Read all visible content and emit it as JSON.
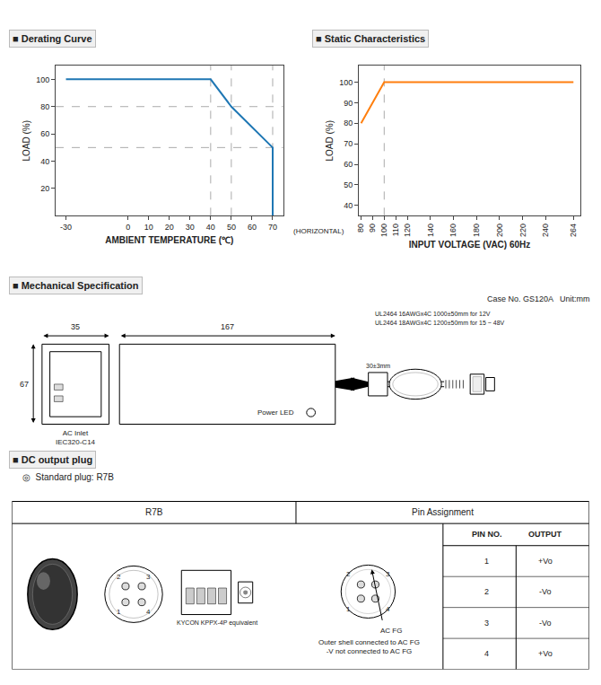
{
  "chart_data": [
    {
      "type": "line",
      "title": "■ Derating Curve",
      "xlabel": "AMBIENT TEMPERATURE (℃)",
      "ylabel": "LOAD (%)",
      "annotations": [
        "(HORIZONTAL)"
      ],
      "x": [
        -30,
        40,
        50,
        70,
        70
      ],
      "values": [
        100,
        100,
        80,
        50,
        0
      ],
      "hlines": [
        80,
        50
      ],
      "vlines": [
        40,
        50,
        70
      ],
      "xlim": [
        -35,
        75
      ],
      "xticks": [
        -30,
        0,
        10,
        20,
        30,
        40,
        50,
        60,
        70
      ],
      "ylim": [
        0,
        110
      ],
      "yticks": [
        20,
        40,
        60,
        80,
        100
      ],
      "grid": false
    },
    {
      "type": "line",
      "title": "■ Static Characteristics",
      "xlabel": "INPUT VOLTAGE (VAC) 60Hz",
      "ylabel": "LOAD (%)",
      "x": [
        80,
        100,
        264
      ],
      "values": [
        80,
        100,
        100
      ],
      "vlines": [
        100
      ],
      "xlim": [
        78,
        270
      ],
      "xticks": [
        80,
        90,
        100,
        110,
        120,
        140,
        160,
        180,
        200,
        220,
        240,
        264
      ],
      "ylim": [
        35,
        108
      ],
      "yticks": [
        40,
        50,
        60,
        70,
        80,
        90,
        100
      ],
      "grid": false
    },
    {
      "type": "diagram",
      "title": "■ Mechanical Specification",
      "annotations": [
        "Case No. GS120A   Unit:mm",
        "35",
        "67",
        "Power LED",
        "167",
        "30±3mm",
        "UL2464 16AWGx4C 1000±50mm for 12V",
        "UL2464 18AWGx4C 1200±50mm for 15 ~ 48V",
        "AC Inlet\nIEC320-C14"
      ]
    },
    {
      "type": "table",
      "title": "■ DC output plug",
      "subtitle": "◎  Standard plug: R7B",
      "header": [
        "PIN NO.",
        "OUTPUT"
      ],
      "rows": [
        [
          "1",
          "+Vo"
        ],
        [
          "2",
          "-Vo"
        ],
        [
          "3",
          "-Vo"
        ],
        [
          "4",
          "+Vo"
        ]
      ],
      "annotations": [
        "R7B",
        "Pin Assignment",
        "2",
        "3",
        "1",
        "4",
        "KYCON KPPX-4P equivalent",
        "2",
        "3",
        "1",
        "4",
        "AC FG",
        "Outer shell connected to AC FG\n-V not connected to AC FG"
      ]
    }
  ]
}
